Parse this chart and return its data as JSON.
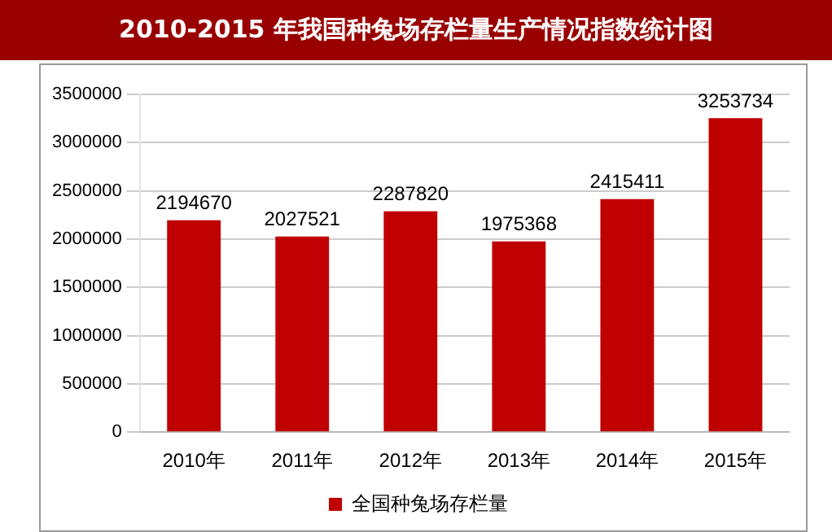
{
  "chart_data": {
    "type": "bar",
    "title": "2010-2015 年我国种兔场存栏量生产情况指数统计图",
    "categories": [
      "2010年",
      "2011年",
      "2012年",
      "2013年",
      "2014年",
      "2015年"
    ],
    "series": [
      {
        "name": "全国种兔场存栏量",
        "color": "#c00000",
        "values": [
          2194670,
          2027521,
          2287820,
          1975368,
          2415411,
          3253734
        ]
      }
    ],
    "ylim": [
      0,
      3500000
    ],
    "yticks": [
      0,
      500000,
      1000000,
      1500000,
      2000000,
      2500000,
      3000000,
      3500000
    ],
    "grid": "y",
    "legend": "bottom",
    "data_labels": true
  }
}
